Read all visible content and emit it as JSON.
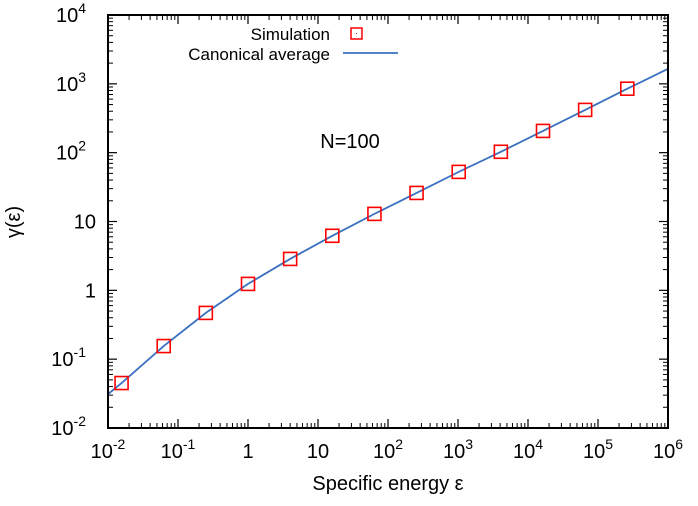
{
  "chart_data": {
    "type": "scatter",
    "xlabel": "Specific energy ε",
    "ylabel": "γ(ε)",
    "annotation": "N=100",
    "xscale": "log",
    "yscale": "log",
    "xlim": [
      0.01,
      1000000
    ],
    "ylim": [
      0.01,
      10000
    ],
    "grid": false,
    "legend_position": "top-left",
    "x_ticks": [
      {
        "base": "10",
        "exp": "-2"
      },
      {
        "base": "10",
        "exp": "-1"
      },
      {
        "base": "1",
        "exp": ""
      },
      {
        "base": "10",
        "exp": ""
      },
      {
        "base": "10",
        "exp": "2"
      },
      {
        "base": "10",
        "exp": "3"
      },
      {
        "base": "10",
        "exp": "4"
      },
      {
        "base": "10",
        "exp": "5"
      },
      {
        "base": "10",
        "exp": "6"
      }
    ],
    "y_ticks": [
      {
        "base": "10",
        "exp": "-2"
      },
      {
        "base": "10",
        "exp": "-1"
      },
      {
        "base": "1",
        "exp": ""
      },
      {
        "base": "10",
        "exp": ""
      },
      {
        "base": "10",
        "exp": "2"
      },
      {
        "base": "10",
        "exp": "3"
      },
      {
        "base": "10",
        "exp": "4"
      }
    ],
    "series": [
      {
        "name": "Simulation",
        "style": "open-square",
        "color": "#ff0000",
        "x": [
          0.015625,
          0.0625,
          0.25,
          1,
          4,
          16,
          64,
          256,
          1024,
          4096,
          16384,
          65536,
          262144
        ],
        "y": [
          0.045,
          0.155,
          0.47,
          1.24,
          2.86,
          6.2,
          12.9,
          26,
          52.6,
          103,
          207,
          418,
          850
        ]
      },
      {
        "name": "Canonical average",
        "style": "line",
        "color": "#3a70c0",
        "x": [
          0.01,
          0.015625,
          0.0625,
          0.25,
          1,
          4,
          16,
          64,
          256,
          1024,
          4096,
          16384,
          65536,
          262144,
          1000000
        ],
        "y": [
          0.031,
          0.045,
          0.155,
          0.47,
          1.24,
          2.86,
          6.2,
          12.9,
          26,
          52.6,
          103,
          207,
          418,
          850,
          1650
        ]
      }
    ]
  }
}
